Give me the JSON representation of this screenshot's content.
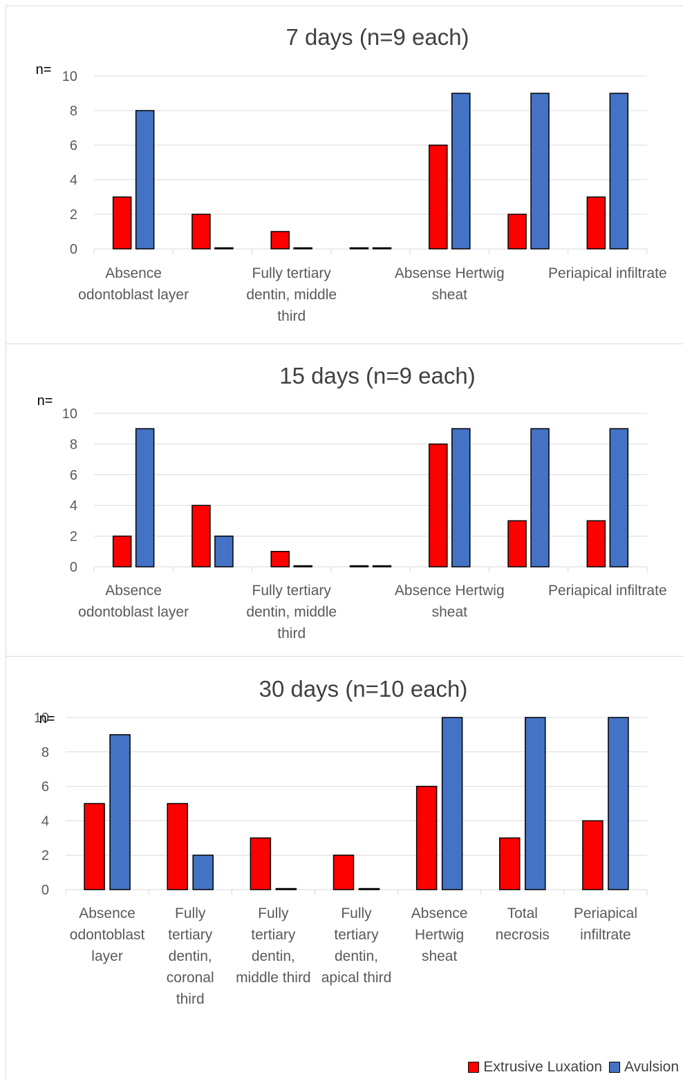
{
  "colors": {
    "extrusive": "#ff0000",
    "avulsion": "#4472c4",
    "grid": "#d9d9d9",
    "text": "#595959",
    "title": "#404040"
  },
  "legend": {
    "position": "bottom-right",
    "items": [
      "Extrusive Luxation",
      "Avulsion"
    ]
  },
  "chart_data": [
    {
      "type": "bar",
      "title": "7 days (n=9 each)",
      "ylabel": "n=",
      "ylim": [
        0,
        10
      ],
      "yticks": [
        0,
        2,
        4,
        6,
        8,
        10
      ],
      "grid": true,
      "categories": [
        [
          "Absence",
          "odontoblast layer"
        ],
        [],
        [
          "Fully tertiary",
          "dentin, middle",
          "third"
        ],
        [],
        [
          "Absense Hertwig",
          "sheat"
        ],
        [],
        [
          "Periapical infiltrate"
        ]
      ],
      "series": [
        {
          "name": "Extrusive Luxation",
          "values": [
            3,
            2,
            1,
            0,
            6,
            2,
            3
          ]
        },
        {
          "name": "Avulsion",
          "values": [
            8,
            0,
            0,
            0,
            9,
            9,
            9
          ]
        }
      ]
    },
    {
      "type": "bar",
      "title": "15 days (n=9 each)",
      "ylabel": "n=",
      "ylim": [
        0,
        10
      ],
      "yticks": [
        0,
        2,
        4,
        6,
        8,
        10
      ],
      "grid": true,
      "categories": [
        [
          "Absence",
          "odontoblast layer"
        ],
        [],
        [
          "Fully tertiary",
          "dentin, middle",
          "third"
        ],
        [],
        [
          "Absence Hertwig",
          "sheat"
        ],
        [],
        [
          "Periapical infiltrate"
        ]
      ],
      "series": [
        {
          "name": "Extrusive Luxation",
          "values": [
            2,
            4,
            1,
            0,
            8,
            3,
            3
          ]
        },
        {
          "name": "Avulsion",
          "values": [
            9,
            2,
            0,
            0,
            9,
            9,
            9
          ]
        }
      ]
    },
    {
      "type": "bar",
      "title": "30 days (n=10 each)",
      "ylabel": "n=",
      "ylim": [
        0,
        10
      ],
      "yticks": [
        0,
        2,
        4,
        6,
        8,
        10
      ],
      "grid": true,
      "categories": [
        [
          "Absence",
          "odontoblast",
          "layer"
        ],
        [
          "Fully",
          "tertiary",
          "dentin,",
          "coronal",
          "third"
        ],
        [
          "Fully",
          "tertiary",
          "dentin,",
          "middle third"
        ],
        [
          "Fully",
          "tertiary",
          "dentin,",
          "apical third"
        ],
        [
          "Absence",
          "Hertwig",
          "sheat"
        ],
        [
          "Total",
          "necrosis"
        ],
        [
          "Periapical",
          "infiltrate"
        ]
      ],
      "series": [
        {
          "name": "Extrusive Luxation",
          "values": [
            5,
            5,
            3,
            2,
            6,
            3,
            4
          ]
        },
        {
          "name": "Avulsion",
          "values": [
            9,
            2,
            0,
            0,
            10,
            10,
            10
          ]
        }
      ]
    }
  ]
}
